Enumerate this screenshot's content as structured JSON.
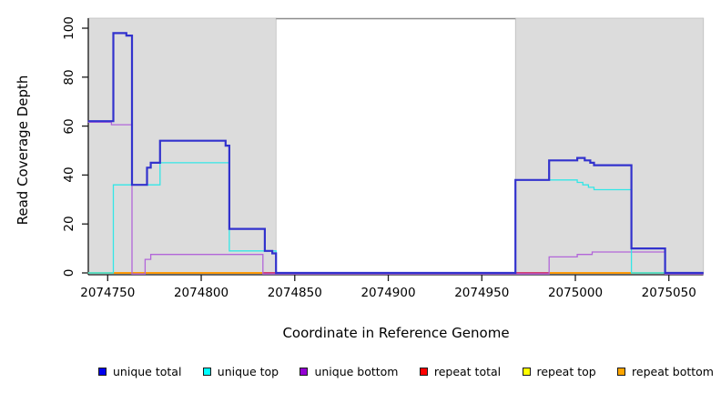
{
  "chart_data": {
    "type": "line",
    "subtype": "step-coverage-plot",
    "title": "",
    "xlabel": "Coordinate in Reference Genome",
    "ylabel": "Read Coverage Depth",
    "xlim": [
      2074739.5,
      2075068.5
    ],
    "ylim": [
      0,
      104
    ],
    "x_ticks": [
      2074750,
      2074800,
      2074850,
      2074900,
      2074950,
      2075000,
      2075050
    ],
    "y_ticks": [
      0,
      20,
      40,
      60,
      80,
      100
    ],
    "grid": "off",
    "legend_position": "bottom",
    "shaded_regions": [
      {
        "x1": 2074739.5,
        "x2": 2074840,
        "color": "#dcdcdc"
      },
      {
        "x1": 2074968,
        "x2": 2075068.5,
        "color": "#dcdcdc"
      }
    ],
    "gap_top_line": {
      "x1": 2074840,
      "x2": 2074968,
      "color": "#8c8c8c"
    },
    "series": [
      {
        "name": "repeat total",
        "color": "#cc3377",
        "width": 1.2,
        "points": [
          [
            2074739.5,
            0
          ],
          [
            2075068.5,
            0
          ]
        ]
      },
      {
        "name": "repeat top",
        "color": "#e8e800",
        "width": 1.2,
        "points": [
          [
            2074739.5,
            0
          ],
          [
            2075068.5,
            0
          ]
        ]
      },
      {
        "name": "repeat bottom",
        "color": "#ff9900",
        "width": 1.6,
        "points": [
          [
            2074739.5,
            0
          ],
          [
            2075068.5,
            0
          ]
        ]
      },
      {
        "name": "unique bottom",
        "color": "#b266d9",
        "width": 1.3,
        "points": [
          [
            2074739.5,
            62
          ],
          [
            2074752,
            61
          ],
          [
            2074763,
            0
          ],
          [
            2074770,
            6
          ],
          [
            2074773,
            8
          ],
          [
            2074833,
            0
          ],
          [
            2074986,
            7
          ],
          [
            2075001,
            8
          ],
          [
            2075009,
            9
          ],
          [
            2075048,
            0
          ],
          [
            2075068.5,
            0
          ]
        ]
      },
      {
        "name": "unique top",
        "color": "#33e6e6",
        "width": 1.3,
        "points": [
          [
            2074739.5,
            0
          ],
          [
            2074753,
            36
          ],
          [
            2074778,
            45
          ],
          [
            2074815,
            9
          ],
          [
            2074840,
            0
          ],
          [
            2074968,
            38
          ],
          [
            2075001,
            37
          ],
          [
            2075004,
            36
          ],
          [
            2075007,
            35
          ],
          [
            2075010,
            34
          ],
          [
            2075030,
            0
          ],
          [
            2075068.5,
            0
          ]
        ]
      },
      {
        "name": "unique total",
        "color": "#3232cd",
        "width": 2.2,
        "points": [
          [
            2074739.5,
            62
          ],
          [
            2074753,
            98
          ],
          [
            2074760,
            97
          ],
          [
            2074763,
            36
          ],
          [
            2074771,
            43
          ],
          [
            2074773,
            45
          ],
          [
            2074778,
            54
          ],
          [
            2074813,
            52
          ],
          [
            2074815,
            18
          ],
          [
            2074834,
            9
          ],
          [
            2074838,
            8
          ],
          [
            2074840,
            0
          ],
          [
            2074968,
            38
          ],
          [
            2074986,
            46
          ],
          [
            2075001,
            47
          ],
          [
            2075005,
            46
          ],
          [
            2075008,
            45
          ],
          [
            2075010,
            44
          ],
          [
            2075030,
            10
          ],
          [
            2075048,
            0
          ],
          [
            2075068.5,
            0
          ]
        ]
      }
    ],
    "baseline_overlap_segments": [
      {
        "color": "#8fd694",
        "x1": 2074739.5,
        "x2": 2074753
      },
      {
        "color": "#ff9900",
        "x1": 2074753,
        "x2": 2074833
      },
      {
        "color": "#cc3377",
        "x1": 2074833,
        "x2": 2074841
      },
      {
        "color": "#cc3377",
        "x1": 2074968,
        "x2": 2074986
      },
      {
        "color": "#ff9900",
        "x1": 2074986,
        "x2": 2075030
      },
      {
        "color": "#8fd694",
        "x1": 2075030,
        "x2": 2075048
      }
    ]
  },
  "legend": [
    {
      "label": "unique total",
      "color": "#0000ee"
    },
    {
      "label": "unique top",
      "color": "#00ffff"
    },
    {
      "label": "unique bottom",
      "color": "#9400d3"
    },
    {
      "label": "repeat total",
      "color": "#ff0000"
    },
    {
      "label": "repeat top",
      "color": "#ffff00"
    },
    {
      "label": "repeat bottom",
      "color": "#ffa500"
    }
  ]
}
